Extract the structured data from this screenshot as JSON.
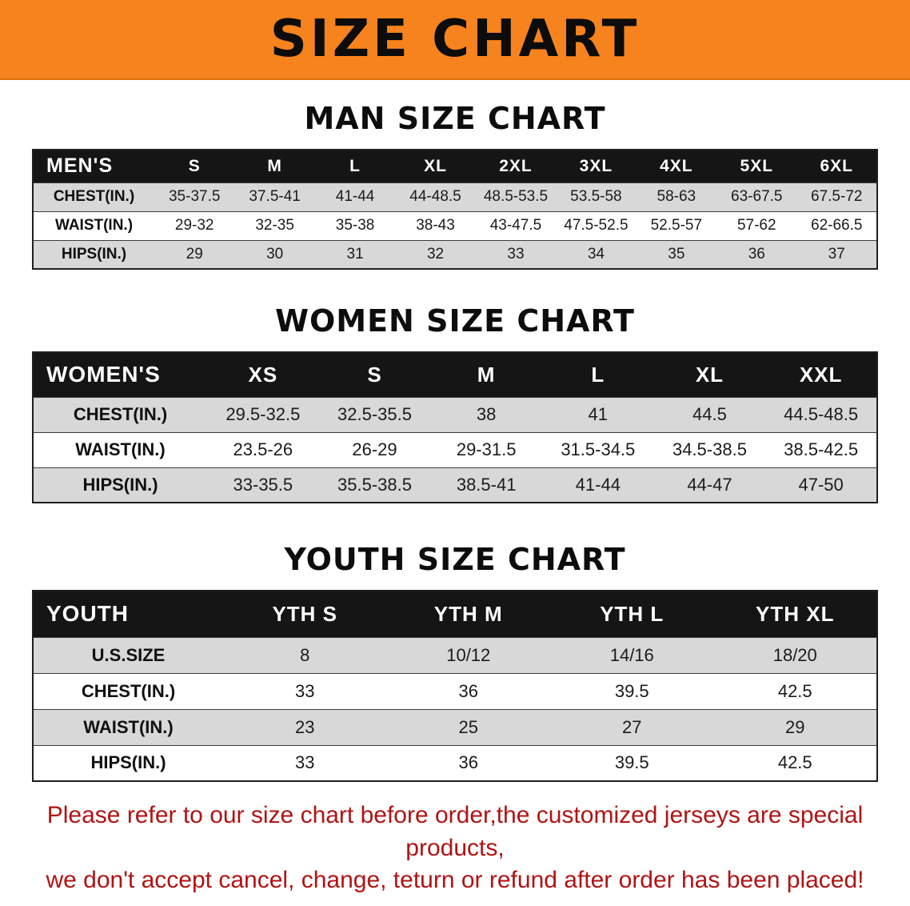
{
  "banner": {
    "title": "SIZE CHART"
  },
  "colors": {
    "banner_bg": "#F6831D",
    "table_header_bg": "#151515",
    "row_stripe": "#d8d8d8",
    "disclaimer_text": "#B11313"
  },
  "men": {
    "heading": "MAN SIZE CHART",
    "table": {
      "header": [
        "MEN'S",
        "S",
        "M",
        "L",
        "XL",
        "2XL",
        "3XL",
        "4XL",
        "5XL",
        "6XL"
      ],
      "rows": [
        [
          "CHEST(IN.)",
          "35-37.5",
          "37.5-41",
          "41-44",
          "44-48.5",
          "48.5-53.5",
          "53.5-58",
          "58-63",
          "63-67.5",
          "67.5-72"
        ],
        [
          "WAIST(IN.)",
          "29-32",
          "32-35",
          "35-38",
          "38-43",
          "43-47.5",
          "47.5-52.5",
          "52.5-57",
          "57-62",
          "62-66.5"
        ],
        [
          "HIPS(IN.)",
          "29",
          "30",
          "31",
          "32",
          "33",
          "34",
          "35",
          "36",
          "37"
        ]
      ]
    }
  },
  "women": {
    "heading": "WOMEN SIZE CHART",
    "table": {
      "header": [
        "WOMEN'S",
        "XS",
        "S",
        "M",
        "L",
        "XL",
        "XXL"
      ],
      "rows": [
        [
          "CHEST(IN.)",
          "29.5-32.5",
          "32.5-35.5",
          "38",
          "41",
          "44.5",
          "44.5-48.5"
        ],
        [
          "WAIST(IN.)",
          "23.5-26",
          "26-29",
          "29-31.5",
          "31.5-34.5",
          "34.5-38.5",
          "38.5-42.5"
        ],
        [
          "HIPS(IN.)",
          "33-35.5",
          "35.5-38.5",
          "38.5-41",
          "41-44",
          "44-47",
          "47-50"
        ]
      ]
    }
  },
  "youth": {
    "heading": "YOUTH SIZE CHART",
    "table": {
      "header": [
        "YOUTH",
        "YTH S",
        "YTH M",
        "YTH L",
        "YTH XL"
      ],
      "rows": [
        [
          "U.S.SIZE",
          "8",
          "10/12",
          "14/16",
          "18/20"
        ],
        [
          "CHEST(IN.)",
          "33",
          "36",
          "39.5",
          "42.5"
        ],
        [
          "WAIST(IN.)",
          "23",
          "25",
          "27",
          "29"
        ],
        [
          "HIPS(IN.)",
          "33",
          "36",
          "39.5",
          "42.5"
        ]
      ]
    }
  },
  "disclaimer": {
    "line1": "Please refer to our size chart before order,the customized jerseys are special products,",
    "line2": "we don't accept cancel, change, teturn or refund after order has been placed!"
  }
}
